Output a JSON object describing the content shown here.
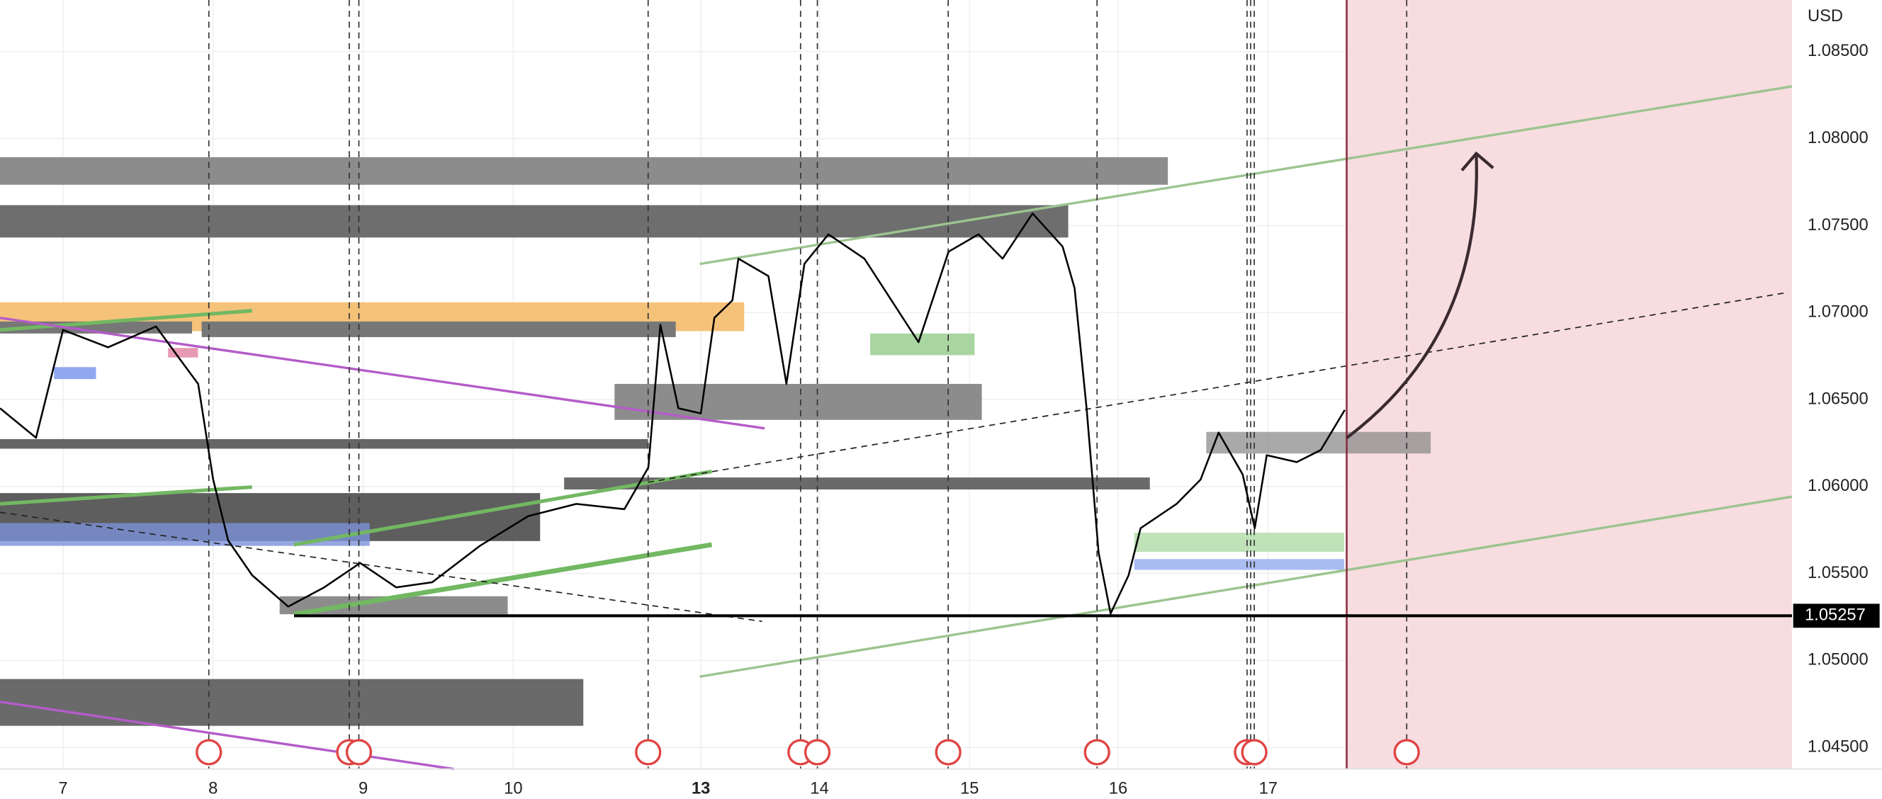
{
  "chart_data": {
    "type": "line",
    "currency": "USD",
    "color": "#000000",
    "x": [
      -0.42,
      -0.18,
      0,
      0.3,
      0.62,
      0.78,
      0.9,
      1,
      1.1,
      1.26,
      1.5,
      1.74,
      1.98,
      2.22,
      2.46,
      2.78,
      3.1,
      3.42,
      3.74,
      3.9,
      3.98,
      4.1,
      4.25,
      4.34,
      4.46,
      4.5,
      4.7,
      4.82,
      4.94,
      5.1,
      5.34,
      5.7,
      5.9,
      6.1,
      6.26,
      6.46,
      6.66,
      6.74,
      6.82,
      6.9,
      6.98,
      7.1,
      7.18,
      7.42,
      7.58,
      7.7,
      7.86,
      7.94,
      8.02,
      8.22,
      8.38,
      8.54
    ],
    "values": [
      1.0645,
      1.0628,
      1.069,
      1.068,
      1.0692,
      1.0673,
      1.0659,
      1.0604,
      1.0569,
      1.0549,
      1.0531,
      1.0542,
      1.0556,
      1.0542,
      1.0545,
      1.0566,
      1.0583,
      1.059,
      1.0587,
      1.0611,
      1.0693,
      1.0645,
      1.0642,
      1.0697,
      1.0707,
      1.0731,
      1.0721,
      1.0659,
      1.0728,
      1.0745,
      1.0731,
      1.0683,
      1.0735,
      1.0745,
      1.0731,
      1.0757,
      1.0738,
      1.0714,
      1.0645,
      1.0562,
      1.0527,
      1.0549,
      1.0576,
      1.059,
      1.0604,
      1.0631,
      1.0607,
      1.0576,
      1.0618,
      1.0614,
      1.0621,
      1.0644
    ],
    "xlim": [
      -0.42,
      11.52
    ],
    "xticks": [
      {
        "value": 0,
        "label": "7"
      },
      {
        "value": 1,
        "label": "8"
      },
      {
        "value": 2,
        "label": "9"
      },
      {
        "value": 3,
        "label": "10"
      },
      {
        "value": 4.25,
        "label": "13"
      },
      {
        "value": 5.04,
        "label": "14"
      },
      {
        "value": 6.04,
        "label": "15"
      },
      {
        "value": 7.03,
        "label": "16"
      },
      {
        "value": 8.03,
        "label": "17"
      }
    ],
    "ylim": [
      1.04376,
      1.08797
    ],
    "yticks": [
      {
        "value": 1.085,
        "label": "1.08500"
      },
      {
        "value": 1.08,
        "label": "1.08000"
      },
      {
        "value": 1.075,
        "label": "1.07500"
      },
      {
        "value": 1.07,
        "label": "1.07000"
      },
      {
        "value": 1.065,
        "label": "1.06500"
      },
      {
        "value": 1.06,
        "label": "1.06000"
      },
      {
        "value": 1.055,
        "label": "1.05500"
      },
      {
        "value": 1.05,
        "label": "1.05000"
      },
      {
        "value": 1.045,
        "label": "1.04500"
      }
    ],
    "price_line": {
      "value": 1.05257,
      "label": "1.05257"
    }
  }
}
